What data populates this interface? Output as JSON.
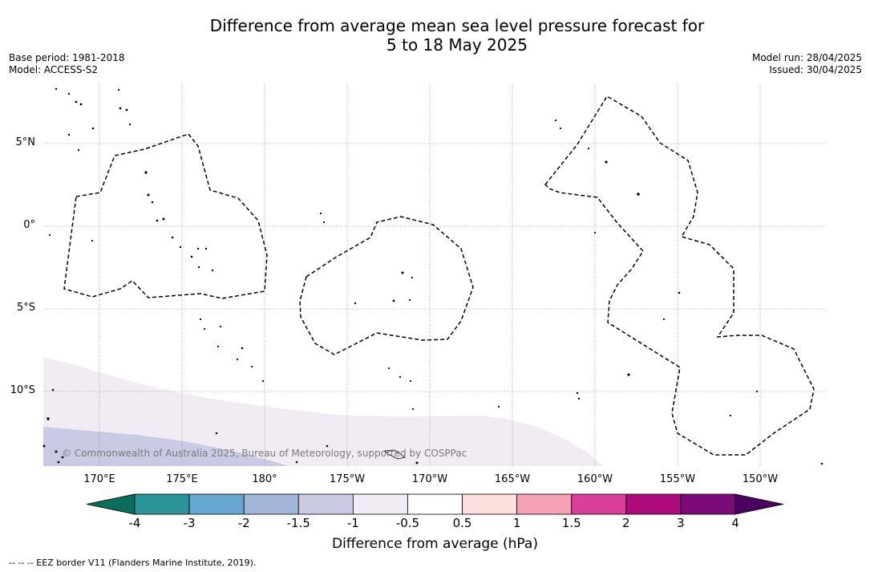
{
  "title_line1": "Difference from average mean sea level pressure forecast for",
  "title_line2": "5 to 18 May 2025",
  "base_period": "Base period: 1981-2018",
  "model": "Model: ACCESS-S2",
  "model_run": "Model run: 28/04/2025",
  "issued": "Issued: 30/04/2025",
  "lat_labels": [
    "5°N",
    "0°",
    "5°S",
    "10°S"
  ],
  "lon_labels": [
    "170°E",
    "175°E",
    "180°",
    "175°W",
    "170°W",
    "165°W",
    "160°W",
    "155°W",
    "150°W"
  ],
  "copyright": "© Commonwealth of Australia 2025, Bureau of Meteorology, supported by COSPPac",
  "colorbar": {
    "ticks": [
      "-4",
      "-3",
      "-2",
      "-1.5",
      "-1",
      "-0.5",
      "0.5",
      "1",
      "1.5",
      "2",
      "3",
      "4"
    ],
    "colors": [
      "#0b6e5c",
      "#2a9499",
      "#67a6d0",
      "#a2b5d8",
      "#c8cbe3",
      "#f1ecf3",
      "#ffffff",
      "#fde0de",
      "#f7a1b5",
      "#db3f9c",
      "#ad0a7c",
      "#7b0a77",
      "#4b0060"
    ],
    "label": "Difference from average (hPa)"
  },
  "footnote": "--  --  -- EEZ border V11 (Flanders Marine Institute, 2019)."
}
